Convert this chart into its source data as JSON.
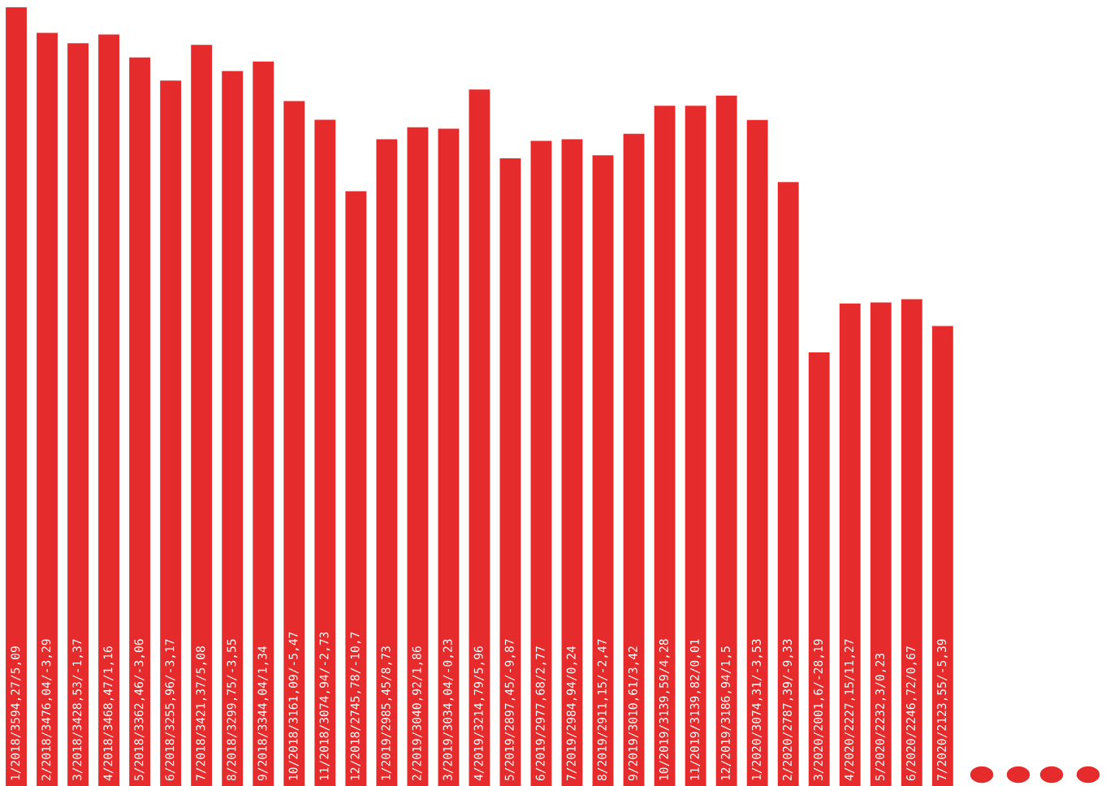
{
  "chart_data": {
    "type": "bar",
    "color": "#e52b2b",
    "categories": [
      null,
      null,
      null,
      null,
      null,
      null,
      null,
      null,
      null,
      null,
      null,
      null,
      null,
      null,
      null,
      null,
      null,
      null,
      null,
      null,
      null,
      null,
      null,
      null,
      null,
      null,
      null,
      null,
      null,
      null,
      null
    ],
    "values": [
      3594.27,
      3476.04,
      3428.53,
      3468.47,
      3362.46,
      3255.96,
      3421.37,
      3299.75,
      3344.04,
      3161.09,
      3074.94,
      2745.78,
      2985.45,
      3040.92,
      3034.04,
      3214.79,
      2897.45,
      2977.68,
      2984.94,
      2911.15,
      3010.61,
      3139.59,
      3139.82,
      3186.94,
      3074.31,
      2787.39,
      2001.6,
      2227.15,
      2232.3,
      2246.72,
      2123.55
    ],
    "value_labels": [
      "1/2018/3594,27/5,09",
      "2/2018/3476,04/-3,29",
      "3/2018/3428,53/-1,37",
      "4/2018/3468,47/1,16",
      "5/2018/3362,46/-3,06",
      "6/2018/3255,96/-3,17",
      "7/2018/3421,37/5,08",
      "8/2018/3299,75/-3,55",
      "9/2018/3344,04/1,34",
      "10/2018/3161,09/-5,47",
      "11/2018/3074,94/-2,73",
      "12/2018/2745,78/-10,7",
      "1/2019/2985,45/8,73",
      "2/2019/3040,92/1,86",
      "3/2019/3034,04/-0,23",
      "4/2019/3214,79/5,96",
      "5/2019/2897,45/-9,87",
      "6/2019/2977,68/2,77",
      "7/2019/2984,94/0,24",
      "8/2019/2911,15/-2,47",
      "9/2019/3010,61/3,42",
      "10/2019/3139,59/4,28",
      "11/2019/3139,82/0,01",
      "12/2019/3186,94/1,5",
      "1/2020/3074,31/-3,53",
      "2/2020/2787,39/-9,33",
      "3/2020/2001,6/-28,19",
      "4/2020/2227,15/11,27",
      "5/2020/2232,3/0,23",
      "6/2020/2246,72/0,67",
      "7/2020/2123,55/-5,39"
    ]
  }
}
